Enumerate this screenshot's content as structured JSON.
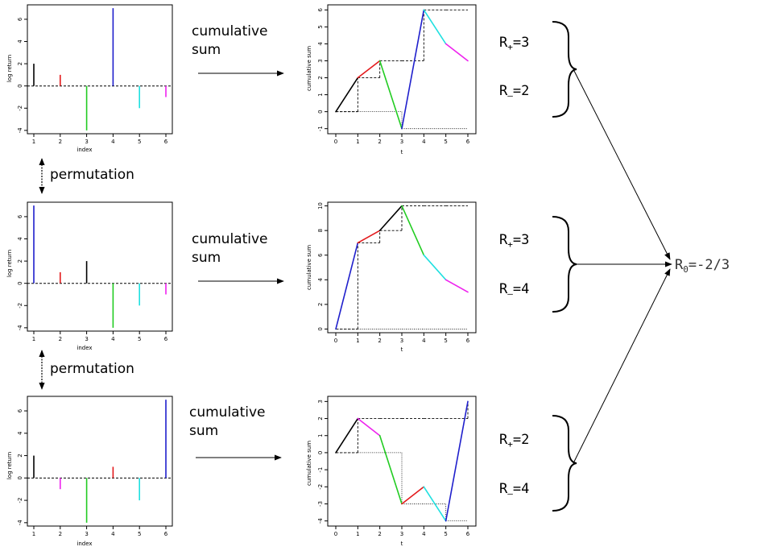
{
  "labels": {
    "cumulative_line1": "cumulative",
    "cumulative_line2": "sum",
    "permutation": "permutation",
    "r_zero": "R",
    "r_zero_sub": "0",
    "r_zero_value": "=-2/3"
  },
  "rows": [
    {
      "left": {
        "ylabel": "log return",
        "xlabel": "index",
        "xticks": [
          "1",
          "2",
          "3",
          "4",
          "5",
          "6"
        ],
        "yticks": [
          "-4",
          "-2",
          "0",
          "2",
          "4",
          "6"
        ]
      },
      "right": {
        "ylabel": "cumulative sum",
        "xlabel": "t",
        "xticks": [
          "0",
          "1",
          "2",
          "3",
          "4",
          "5",
          "6"
        ],
        "yticks": [
          "-1",
          "0",
          "1",
          "2",
          "3",
          "4",
          "5",
          "6"
        ]
      },
      "r_plus": {
        "label": "R",
        "sub": "+",
        "value": "=3"
      },
      "r_minus": {
        "label": "R",
        "sub": "–",
        "value": "=2"
      }
    },
    {
      "left": {
        "ylabel": "log return",
        "xlabel": "index",
        "xticks": [
          "1",
          "2",
          "3",
          "4",
          "5",
          "6"
        ],
        "yticks": [
          "-4",
          "-2",
          "0",
          "2",
          "4",
          "6"
        ]
      },
      "right": {
        "ylabel": "cumulative sum",
        "xlabel": "t",
        "xticks": [
          "0",
          "1",
          "2",
          "3",
          "4",
          "5",
          "6"
        ],
        "yticks": [
          "0",
          "2",
          "4",
          "6",
          "8",
          "10"
        ]
      },
      "r_plus": {
        "label": "R",
        "sub": "+",
        "value": "=3"
      },
      "r_minus": {
        "label": "R",
        "sub": "–",
        "value": "=4"
      }
    },
    {
      "left": {
        "ylabel": "log return",
        "xlabel": "index",
        "xticks": [
          "1",
          "2",
          "3",
          "4",
          "5",
          "6"
        ],
        "yticks": [
          "-4",
          "-2",
          "0",
          "2",
          "4",
          "6"
        ]
      },
      "right": {
        "ylabel": "cumulative sum",
        "xlabel": "t",
        "xticks": [
          "0",
          "1",
          "2",
          "3",
          "4",
          "5",
          "6"
        ],
        "yticks": [
          "-4",
          "-3",
          "-2",
          "-1",
          "0",
          "1",
          "2",
          "3"
        ]
      },
      "r_plus": {
        "label": "R",
        "sub": "+",
        "value": "=2"
      },
      "r_minus": {
        "label": "R",
        "sub": "–",
        "value": "=4"
      }
    }
  ],
  "colors": {
    "black": "#000000",
    "red": "#e31a1c",
    "green": "#22cc22",
    "blue": "#1f1fcc",
    "cyan": "#20e0e0",
    "magenta": "#ee22ee"
  },
  "chart_data": [
    {
      "type": "bar",
      "x": [
        1,
        2,
        3,
        4,
        5,
        6
      ],
      "values": [
        2,
        1,
        -4,
        7,
        -2,
        -1
      ],
      "colors": [
        "black",
        "red",
        "green",
        "blue",
        "cyan",
        "magenta"
      ],
      "xlabel": "index",
      "ylabel": "log return",
      "ylim": [
        -4.3,
        7.3
      ]
    },
    {
      "type": "line",
      "x": [
        0,
        1,
        2,
        3,
        4,
        5,
        6
      ],
      "values": [
        0,
        2,
        3,
        -1,
        6,
        4,
        3
      ],
      "colors": [
        "black",
        "red",
        "green",
        "blue",
        "cyan",
        "magenta"
      ],
      "xlabel": "t",
      "ylabel": "cumulative sum",
      "ylim": [
        -1.3,
        6.3
      ]
    },
    {
      "type": "bar",
      "x": [
        1,
        2,
        3,
        4,
        5,
        6
      ],
      "values": [
        7,
        1,
        2,
        -4,
        -2,
        -1
      ],
      "colors": [
        "blue",
        "red",
        "black",
        "green",
        "cyan",
        "magenta"
      ],
      "xlabel": "index",
      "ylabel": "log return",
      "ylim": [
        -4.3,
        7.3
      ]
    },
    {
      "type": "line",
      "x": [
        0,
        1,
        2,
        3,
        4,
        5,
        6
      ],
      "values": [
        0,
        7,
        8,
        10,
        6,
        4,
        3
      ],
      "colors": [
        "blue",
        "red",
        "black",
        "green",
        "cyan",
        "magenta"
      ],
      "xlabel": "t",
      "ylabel": "cumulative sum",
      "ylim": [
        -0.3,
        10.3
      ]
    },
    {
      "type": "bar",
      "x": [
        1,
        2,
        3,
        4,
        5,
        6
      ],
      "values": [
        2,
        -1,
        -4,
        1,
        -2,
        7
      ],
      "colors": [
        "black",
        "magenta",
        "green",
        "red",
        "cyan",
        "blue"
      ],
      "xlabel": "index",
      "ylabel": "log return",
      "ylim": [
        -4.3,
        7.3
      ]
    },
    {
      "type": "line",
      "x": [
        0,
        1,
        2,
        3,
        4,
        5,
        6
      ],
      "values": [
        0,
        2,
        1,
        -3,
        -2,
        -4,
        3
      ],
      "colors": [
        "black",
        "magenta",
        "green",
        "red",
        "cyan",
        "blue"
      ],
      "xlabel": "t",
      "ylabel": "cumulative sum",
      "ylim": [
        -4.3,
        3.3
      ]
    }
  ]
}
